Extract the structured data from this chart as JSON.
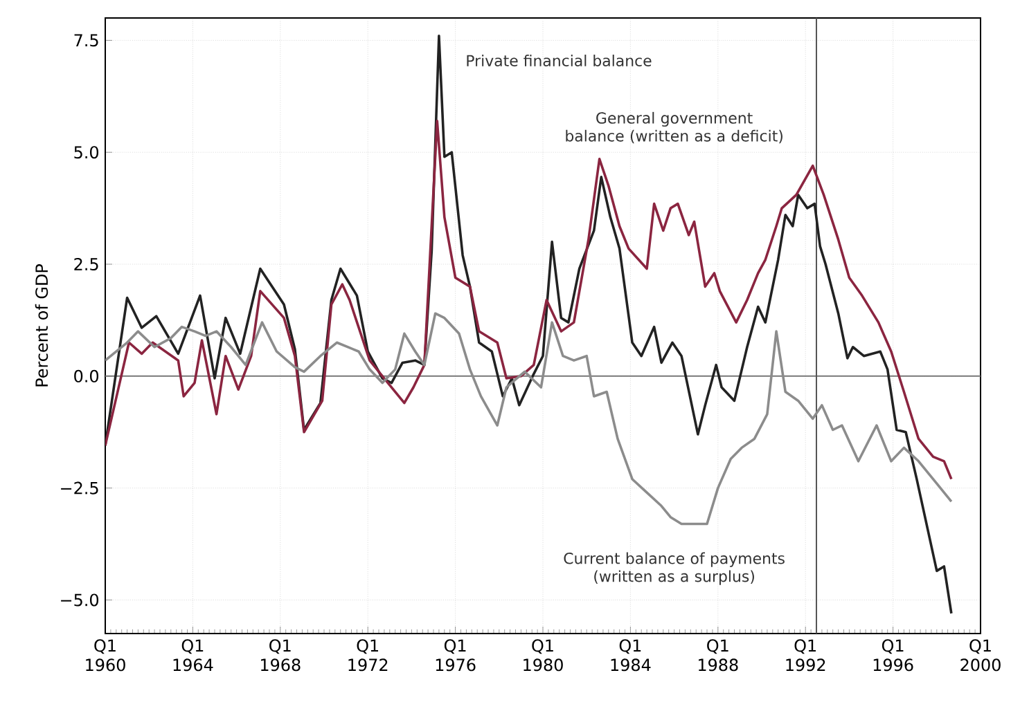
{
  "chart_data": {
    "type": "line",
    "ylabel": "Percent of GDP",
    "xlim": [
      "1960-01",
      "2000-01"
    ],
    "ylim": [
      -5.75,
      8.0
    ],
    "xticks": [
      {
        "value": "1960-01",
        "label": "Q1 1960"
      },
      {
        "value": "1964-01",
        "label": "Q1 1964"
      },
      {
        "value": "1968-01",
        "label": "Q1 1968"
      },
      {
        "value": "1972-01",
        "label": "Q1 1972"
      },
      {
        "value": "1976-01",
        "label": "Q1 1976"
      },
      {
        "value": "1980-01",
        "label": "Q1 1980"
      },
      {
        "value": "1984-01",
        "label": "Q1 1984"
      },
      {
        "value": "1988-01",
        "label": "Q1 1988"
      },
      {
        "value": "1992-01",
        "label": "Q1 1992"
      },
      {
        "value": "1996-01",
        "label": "Q1 1996"
      },
      {
        "value": "2000-01",
        "label": "Q1 2000"
      }
    ],
    "yticks": [
      {
        "value": -5.0,
        "label": "−5.0"
      },
      {
        "value": -2.5,
        "label": "−2.5"
      },
      {
        "value": 0,
        "label": "0.0"
      },
      {
        "value": 2.5,
        "label": "2.5"
      },
      {
        "value": 5.0,
        "label": "5.0"
      },
      {
        "value": 7.5,
        "label": "7.5"
      }
    ],
    "grid": true,
    "marker": "none",
    "line_style": "solid",
    "ref_lines": [
      {
        "axis": "y",
        "value": 0,
        "color": "#777777"
      },
      {
        "axis": "x",
        "value": "1992-07",
        "color": "#555555"
      }
    ],
    "series": [
      {
        "name": "Private financial balance",
        "color": "#222222",
        "x": [
          "1960-01",
          "1961-01",
          "1961-09",
          "1962-05",
          "1963-05",
          "1964-05",
          "1965-01",
          "1965-07",
          "1966-03",
          "1967-02",
          "1968-03",
          "1968-09",
          "1969-02",
          "1969-11",
          "1970-05",
          "1970-10",
          "1971-07",
          "1972-01",
          "1972-09",
          "1973-02",
          "1973-08",
          "1974-03",
          "1974-08",
          "1974-12",
          "1975-04",
          "1975-07",
          "1975-11",
          "1976-05",
          "1976-09",
          "1977-02",
          "1977-09",
          "1978-03",
          "1978-08",
          "1978-12",
          "1979-08",
          "1980-01",
          "1980-06",
          "1980-11",
          "1981-03",
          "1981-09",
          "1982-05",
          "1982-09",
          "1983-02",
          "1983-07",
          "1984-02",
          "1984-07",
          "1985-02",
          "1985-06",
          "1985-12",
          "1986-05",
          "1987-02",
          "1987-06",
          "1987-12",
          "1988-03",
          "1988-10",
          "1989-05",
          "1989-11",
          "1990-03",
          "1990-10",
          "1991-02",
          "1991-06",
          "1991-09",
          "1992-02",
          "1992-06",
          "1992-09",
          "1992-12",
          "1993-07",
          "1993-12",
          "1994-03",
          "1994-09",
          "1995-06",
          "1995-10",
          "1996-03",
          "1996-08",
          "1997-02",
          "1998-01",
          "1998-05",
          "1998-09"
        ],
        "values": [
          -1.55,
          1.75,
          1.08,
          1.34,
          0.5,
          1.8,
          -0.05,
          1.3,
          0.5,
          2.4,
          1.6,
          0.6,
          -1.2,
          -0.6,
          1.7,
          2.4,
          1.8,
          0.55,
          -0.05,
          -0.15,
          0.3,
          0.35,
          0.25,
          2.8,
          7.6,
          4.9,
          5.0,
          2.7,
          2.0,
          0.75,
          0.55,
          -0.45,
          -0.05,
          -0.65,
          0.05,
          0.45,
          3.0,
          1.3,
          1.2,
          2.4,
          3.25,
          4.45,
          3.55,
          2.85,
          0.75,
          0.45,
          1.1,
          0.3,
          0.75,
          0.45,
          -1.3,
          -0.65,
          0.25,
          -0.25,
          -0.55,
          0.65,
          1.55,
          1.2,
          2.6,
          3.6,
          3.35,
          4.05,
          3.75,
          3.85,
          2.9,
          2.5,
          1.4,
          0.4,
          0.65,
          0.45,
          0.55,
          0.15,
          -1.2,
          -1.25,
          -2.3,
          -4.35,
          -4.25,
          -5.3
        ]
      },
      {
        "name": "General government balance (written as a deficit)",
        "color": "#8b2540",
        "x": [
          "1960-01",
          "1961-02",
          "1961-09",
          "1962-03",
          "1963-05",
          "1963-08",
          "1964-02",
          "1964-06",
          "1965-02",
          "1965-07",
          "1966-02",
          "1966-09",
          "1967-02",
          "1968-03",
          "1968-09",
          "1969-02",
          "1969-12",
          "1970-05",
          "1970-11",
          "1971-03",
          "1972-02",
          "1972-12",
          "1973-09",
          "1974-02",
          "1974-08",
          "1975-03",
          "1975-07",
          "1976-01",
          "1976-09",
          "1977-02",
          "1977-12",
          "1978-05",
          "1979-01",
          "1979-08",
          "1980-03",
          "1980-11",
          "1981-06",
          "1982-02",
          "1982-08",
          "1983-01",
          "1983-07",
          "1983-12",
          "1984-10",
          "1985-02",
          "1985-07",
          "1985-11",
          "1986-03",
          "1986-09",
          "1986-12",
          "1987-06",
          "1987-11",
          "1988-02",
          "1988-11",
          "1989-05",
          "1989-11",
          "1990-03",
          "1990-09",
          "1990-12",
          "1991-08",
          "1992-05",
          "1992-11",
          "1993-07",
          "1994-01",
          "1994-08",
          "1995-05",
          "1995-12",
          "1996-07",
          "1997-03",
          "1997-11",
          "1998-05",
          "1998-09"
        ],
        "values": [
          -1.55,
          0.75,
          0.5,
          0.75,
          0.35,
          -0.45,
          -0.15,
          0.8,
          -0.85,
          0.45,
          -0.3,
          0.45,
          1.9,
          1.3,
          0.45,
          -1.25,
          -0.55,
          1.6,
          2.05,
          1.7,
          0.35,
          -0.15,
          -0.6,
          -0.25,
          0.25,
          5.7,
          3.55,
          2.2,
          2.0,
          1.0,
          0.75,
          -0.05,
          0.0,
          0.25,
          1.7,
          1.0,
          1.2,
          3.05,
          4.85,
          4.25,
          3.35,
          2.85,
          2.4,
          3.85,
          3.25,
          3.75,
          3.85,
          3.15,
          3.45,
          2.0,
          2.3,
          1.9,
          1.2,
          1.7,
          2.3,
          2.6,
          3.35,
          3.75,
          4.05,
          4.7,
          4.05,
          3.05,
          2.2,
          1.8,
          1.2,
          0.55,
          -0.35,
          -1.4,
          -1.8,
          -1.9,
          -2.3
        ]
      },
      {
        "name": "Current balance of payments (written as a surplus)",
        "color": "#8c8c8c",
        "x": [
          "1960-01",
          "1961-01",
          "1961-07",
          "1962-04",
          "1963-01",
          "1963-07",
          "1964-02",
          "1964-08",
          "1965-02",
          "1965-10",
          "1966-06",
          "1967-03",
          "1967-11",
          "1968-09",
          "1969-02",
          "1969-11",
          "1970-08",
          "1971-08",
          "1972-02",
          "1972-09",
          "1973-04",
          "1973-09",
          "1974-03",
          "1974-08",
          "1975-02",
          "1975-07",
          "1976-03",
          "1976-09",
          "1977-03",
          "1977-12",
          "1978-05",
          "1979-03",
          "1979-12",
          "1980-06",
          "1980-12",
          "1981-06",
          "1982-01",
          "1982-05",
          "1982-12",
          "1983-06",
          "1984-02",
          "1984-10",
          "1985-06",
          "1985-11",
          "1986-05",
          "1987-07",
          "1988-01",
          "1988-08",
          "1989-02",
          "1989-09",
          "1990-04",
          "1990-09",
          "1991-02",
          "1991-09",
          "1992-05",
          "1992-10",
          "1993-04",
          "1993-09",
          "1994-06",
          "1995-04",
          "1995-12",
          "1996-07",
          "1997-03",
          "1998-01",
          "1998-09"
        ],
        "values": [
          0.35,
          0.75,
          1.0,
          0.65,
          0.85,
          1.1,
          1.0,
          0.9,
          1.0,
          0.65,
          0.25,
          1.2,
          0.55,
          0.2,
          0.1,
          0.45,
          0.75,
          0.55,
          0.15,
          -0.15,
          0.15,
          0.95,
          0.55,
          0.25,
          1.4,
          1.3,
          0.95,
          0.15,
          -0.45,
          -1.1,
          -0.25,
          0.1,
          -0.25,
          1.2,
          0.45,
          0.35,
          0.45,
          -0.45,
          -0.35,
          -1.4,
          -2.3,
          -2.6,
          -2.9,
          -3.15,
          -3.3,
          -3.3,
          -2.5,
          -1.85,
          -1.6,
          -1.4,
          -0.85,
          1.0,
          -0.35,
          -0.55,
          -0.95,
          -0.65,
          -1.2,
          -1.1,
          -1.9,
          -1.1,
          -1.9,
          -1.6,
          -1.9,
          -2.4,
          -2.8
        ]
      }
    ]
  }
}
